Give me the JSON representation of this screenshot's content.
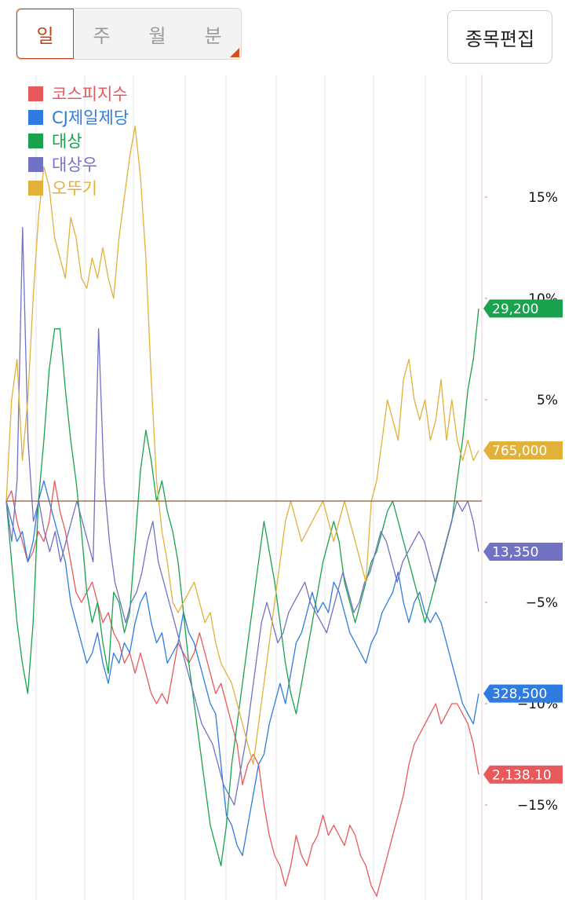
{
  "period_tabs": [
    {
      "label": "일",
      "active": true
    },
    {
      "label": "주",
      "active": false
    },
    {
      "label": "월",
      "active": false
    },
    {
      "label": "분",
      "active": false
    }
  ],
  "edit_button": "종목편집",
  "chart_data": {
    "type": "line",
    "y_unit": "%",
    "ylim": [
      -20,
      19
    ],
    "y_ticks": [
      15,
      10,
      5,
      -5,
      -10,
      -15
    ],
    "y_tick_labels": [
      "15%",
      "10%",
      "5%",
      "−5%",
      "−10%",
      "−15%"
    ],
    "baseline": 0,
    "grid": "vertical",
    "legend_position": "top-left",
    "series": [
      {
        "name": "코스피지수",
        "color": "#e8595c",
        "last_value_label": "2,138.10",
        "values": [
          0,
          0.5,
          -1,
          -2,
          -3,
          -2.5,
          -1.5,
          -2,
          -1,
          1,
          -0.5,
          -1.5,
          -3,
          -4.5,
          -5,
          -4.5,
          -4,
          -5,
          -6,
          -5.5,
          -6.5,
          -7,
          -8,
          -7.5,
          -8.5,
          -7.5,
          -8.5,
          -9.5,
          -10,
          -9.5,
          -10,
          -8.5,
          -7,
          -7.5,
          -8,
          -7.5,
          -6.5,
          -7.5,
          -8.5,
          -9.5,
          -9,
          -10,
          -11,
          -12,
          -14,
          -13,
          -12.5,
          -13,
          -15,
          -16.5,
          -17.5,
          -18,
          -19,
          -18,
          -16.5,
          -17.5,
          -18,
          -17,
          -16.5,
          -15.5,
          -16.5,
          -16,
          -16.5,
          -17,
          -16,
          -16.5,
          -17.5,
          -18,
          -19,
          -19.5,
          -18.5,
          -17.5,
          -16.5,
          -15.5,
          -14.5,
          -13,
          -12,
          -11.5,
          -11,
          -10.5,
          -10,
          -11,
          -10.5,
          -10,
          -10,
          -10.5,
          -11,
          -12,
          -13.5
        ]
      },
      {
        "name": "CJ제일제당",
        "color": "#2f7be0",
        "last_value_label": "328,500",
        "values": [
          0,
          -1,
          -2,
          -1.5,
          -3,
          -2,
          0,
          1,
          0,
          -1,
          -2,
          -3,
          -5,
          -6,
          -7,
          -8,
          -7.5,
          -6.5,
          -8,
          -9,
          -7.5,
          -8,
          -7,
          -7.5,
          -6,
          -5,
          -4.5,
          -6,
          -7,
          -6.5,
          -8,
          -7.5,
          -7,
          -5.5,
          -6.5,
          -7,
          -8,
          -9,
          -10,
          -10.5,
          -13,
          -15.5,
          -16,
          -17,
          -17.5,
          -16,
          -14.5,
          -13,
          -12.5,
          -11,
          -10,
          -9,
          -10,
          -8.5,
          -7,
          -6.5,
          -5.5,
          -4.5,
          -5.5,
          -5,
          -5.5,
          -4,
          -4.5,
          -5.5,
          -6.5,
          -7,
          -7.5,
          -8,
          -7,
          -6.5,
          -5.5,
          -5,
          -4.5,
          -3.5,
          -5,
          -6,
          -5,
          -4.5,
          -5.5,
          -6,
          -5.5,
          -6,
          -7,
          -8,
          -9,
          -10,
          -10.5,
          -11,
          -9.5
        ]
      },
      {
        "name": "대상",
        "color": "#1aa24e",
        "last_value_label": "29,200",
        "values": [
          0,
          -3,
          -6,
          -8,
          -9.5,
          -6,
          0,
          3,
          6.5,
          8.5,
          8.5,
          5.5,
          3,
          1,
          -1.5,
          -4.5,
          -6,
          -5,
          -7,
          -8.5,
          -4.5,
          -5,
          -6.5,
          -5.5,
          -2,
          1.5,
          3.5,
          2,
          0,
          1,
          -0.5,
          -1.5,
          -3,
          -5.5,
          -8,
          -10,
          -12,
          -14,
          -16,
          -17,
          -18,
          -16,
          -13,
          -11,
          -9,
          -7,
          -5,
          -3,
          -1,
          -2.5,
          -4,
          -6,
          -8,
          -9.5,
          -10.5,
          -9,
          -7.5,
          -6,
          -4.5,
          -3,
          -2,
          -1,
          -2,
          -4,
          -5,
          -6,
          -5,
          -4,
          -3,
          -2.5,
          -1.5,
          -0.5,
          0,
          -1,
          -2,
          -3,
          -4,
          -5,
          -6,
          -5,
          -4,
          -3,
          -2,
          -1,
          1,
          3,
          5.5,
          7,
          9.5
        ]
      },
      {
        "name": "대상우",
        "color": "#7272c4",
        "last_value_label": "13,350",
        "values": [
          0,
          -2,
          1,
          13.5,
          3,
          -1,
          0,
          -1.5,
          -2.5,
          -1.5,
          -3,
          -2,
          -1,
          0,
          -1,
          -2,
          -3,
          8.5,
          1,
          -2,
          -4,
          -5,
          -6,
          -5,
          -4.5,
          -3.5,
          -2,
          -1,
          -3,
          -4,
          -5,
          -6,
          -7,
          -8,
          -9,
          -10,
          -11,
          -11.5,
          -12,
          -13,
          -14,
          -14.5,
          -15,
          -13.5,
          -12,
          -10,
          -8,
          -6,
          -5,
          -6,
          -7,
          -6.5,
          -5.5,
          -5,
          -4.5,
          -4,
          -5,
          -5.5,
          -6,
          -6.5,
          -5.5,
          -4.5,
          -3.5,
          -4.5,
          -5.5,
          -5,
          -4,
          -3.5,
          -2.5,
          -1.5,
          -2,
          -3,
          -4,
          -3,
          -2.5,
          -2,
          -1.5,
          -2,
          -3,
          -4,
          -3,
          -2,
          -1,
          0,
          -0.5,
          0,
          -1,
          -2.5
        ]
      },
      {
        "name": "오뚜기",
        "color": "#e2b13a",
        "last_value_label": "765,000",
        "values": [
          0,
          5,
          7,
          2,
          5,
          10,
          14,
          16.5,
          15.5,
          13,
          12,
          11,
          14,
          13,
          11,
          10.5,
          12,
          11,
          12.5,
          11,
          10,
          13,
          15,
          17,
          18.5,
          16,
          12,
          6,
          1,
          -1.5,
          -3,
          -5,
          -5.5,
          -5,
          -4.5,
          -4,
          -5,
          -6,
          -5.5,
          -7,
          -8,
          -8.5,
          -9,
          -10,
          -11,
          -12,
          -13,
          -11,
          -9,
          -7,
          -5,
          -3,
          -1,
          0,
          -1,
          -2,
          -1.5,
          -1,
          -0.5,
          0,
          -1,
          -2,
          -1,
          0,
          -1,
          -2,
          -3,
          -4,
          0,
          1,
          3,
          5,
          4,
          3,
          6,
          7,
          5,
          4,
          5,
          3,
          4,
          6,
          3,
          5,
          3,
          2,
          3,
          2,
          2.5
        ]
      }
    ]
  }
}
